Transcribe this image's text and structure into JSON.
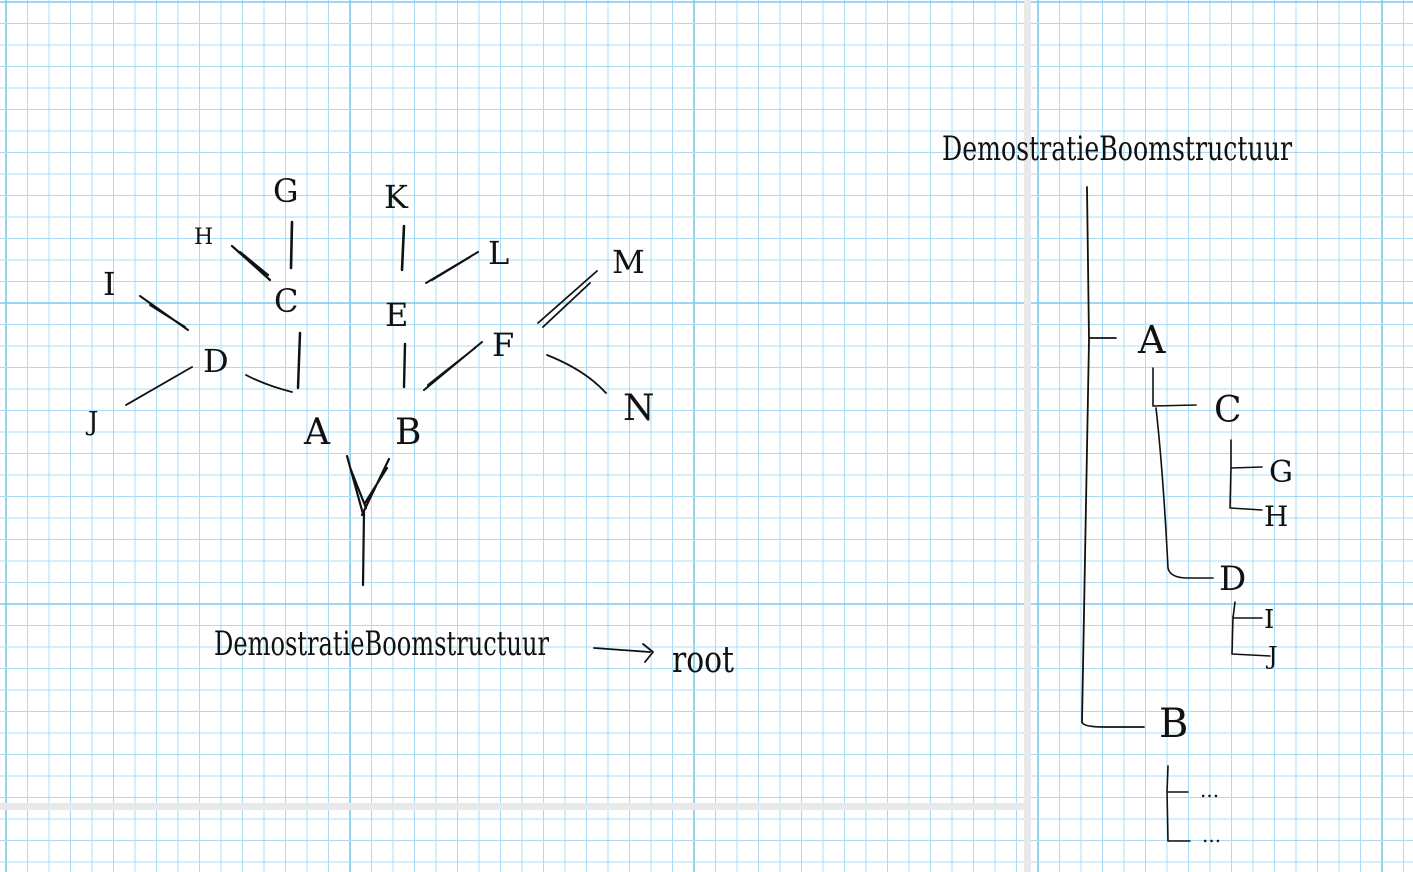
{
  "colors": {
    "paper": "#ffffff",
    "grid_minor": "#a9dcf4",
    "grid_major": "#7cc8ee",
    "page_edge": "#e6e6e6",
    "ink": "#111111"
  },
  "tree": {
    "nodes": [
      {
        "id": "A",
        "label": "A"
      },
      {
        "id": "B",
        "label": "B"
      },
      {
        "id": "C",
        "label": "C"
      },
      {
        "id": "D",
        "label": "D"
      },
      {
        "id": "E",
        "label": "E"
      },
      {
        "id": "F",
        "label": "F"
      },
      {
        "id": "G",
        "label": "G"
      },
      {
        "id": "H",
        "label": "H"
      },
      {
        "id": "I",
        "label": "I"
      },
      {
        "id": "J",
        "label": "J"
      },
      {
        "id": "K",
        "label": "K"
      },
      {
        "id": "L",
        "label": "L"
      },
      {
        "id": "M",
        "label": "M"
      },
      {
        "id": "N",
        "label": "N"
      }
    ],
    "edges": [
      [
        "ROOT",
        "A"
      ],
      [
        "ROOT",
        "B"
      ],
      [
        "A",
        "C"
      ],
      [
        "A",
        "D"
      ],
      [
        "C",
        "G"
      ],
      [
        "C",
        "H"
      ],
      [
        "D",
        "I"
      ],
      [
        "D",
        "J"
      ],
      [
        "B",
        "E"
      ],
      [
        "B",
        "F"
      ],
      [
        "E",
        "K"
      ],
      [
        "E",
        "L"
      ],
      [
        "F",
        "M"
      ],
      [
        "F",
        "N"
      ]
    ],
    "caption": "DemostratieBoomstructuur",
    "arrow_label": "root"
  },
  "outline": {
    "title": "DemostratieBoomstructuur",
    "items": [
      {
        "label": "A",
        "level": 1
      },
      {
        "label": "C",
        "level": 2
      },
      {
        "label": "G",
        "level": 3
      },
      {
        "label": "H",
        "level": 3
      },
      {
        "label": "D",
        "level": 2
      },
      {
        "label": "I",
        "level": 3
      },
      {
        "label": "J",
        "level": 3
      },
      {
        "label": "B",
        "level": 1
      },
      {
        "label": "...",
        "level": 2
      },
      {
        "label": "...",
        "level": 2
      }
    ]
  }
}
